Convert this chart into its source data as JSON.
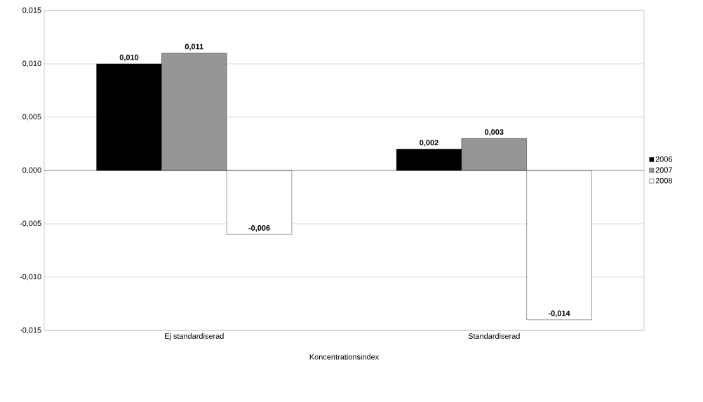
{
  "chart_data": {
    "type": "bar",
    "xlabel": "Koncentrationsindex",
    "categories": [
      "Ej standardiserad",
      "Standardiserad"
    ],
    "series": [
      {
        "name": "2006",
        "color": "#000000",
        "values": [
          0.01,
          0.002
        ],
        "value_labels": [
          "0,010",
          "0,002"
        ]
      },
      {
        "name": "2007",
        "color": "#969696",
        "values": [
          0.011,
          0.003
        ],
        "value_labels": [
          "0,011",
          "0,003"
        ]
      },
      {
        "name": "2008",
        "color": "#ffffff",
        "values": [
          -0.006,
          -0.014
        ],
        "value_labels": [
          "-0,006",
          "-0,014"
        ]
      }
    ],
    "ylim": [
      -0.015,
      0.015
    ],
    "yticks": [
      {
        "value": -0.015,
        "label": "-0,015"
      },
      {
        "value": -0.01,
        "label": "-0,010"
      },
      {
        "value": -0.005,
        "label": "-0,005"
      },
      {
        "value": 0,
        "label": "0,000"
      },
      {
        "value": 0.005,
        "label": "0,005"
      },
      {
        "value": 0.01,
        "label": "0,010"
      },
      {
        "value": 0.015,
        "label": "0,015"
      }
    ],
    "grid": "y",
    "legend": "right"
  }
}
